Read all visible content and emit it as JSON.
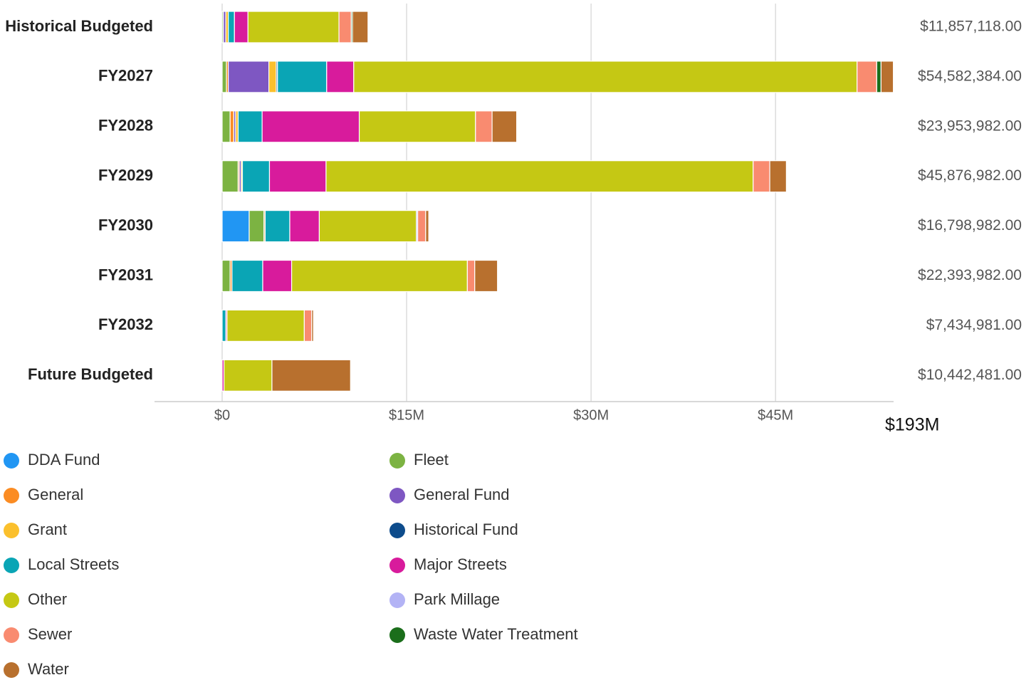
{
  "chart_data": {
    "type": "stacked-bar-horizontal",
    "categories": [
      "Historical Budgeted",
      "FY2027",
      "FY2028",
      "FY2029",
      "FY2030",
      "FY2031",
      "FY2032",
      "Future Budgeted"
    ],
    "series": [
      {
        "name": "DDA Fund",
        "color": "#2196f3",
        "values": [
          null,
          null,
          null,
          null,
          2.2,
          null,
          null,
          null
        ]
      },
      {
        "name": "Fleet",
        "color": "#7cb342",
        "values": [
          0.1,
          0.35,
          0.65,
          1.3,
          1.2,
          0.65,
          null,
          null
        ]
      },
      {
        "name": "General",
        "color": "#fb8c23",
        "values": [
          null,
          0.15,
          0.3,
          0.1,
          0.1,
          0.15,
          null,
          null
        ]
      },
      {
        "name": "General Fund",
        "color": "#7e57c2",
        "values": [
          0.2,
          3.3,
          0.15,
          0.15,
          null,
          null,
          null,
          null
        ]
      },
      {
        "name": "Grant",
        "color": "#fbc02d",
        "values": [
          0.2,
          0.6,
          0.2,
          0.1,
          null,
          null,
          null,
          null
        ]
      },
      {
        "name": "Historical Fund",
        "color": "#0d4c8c",
        "values": [
          null,
          0.1,
          null,
          null,
          null,
          null,
          null,
          null
        ]
      },
      {
        "name": "Local Streets",
        "color": "#0aa5b5",
        "values": [
          0.5,
          4.0,
          1.95,
          2.2,
          2.0,
          2.5,
          0.3,
          null
        ]
      },
      {
        "name": "Major Streets",
        "color": "#d81b9c",
        "values": [
          1.1,
          2.2,
          7.9,
          4.6,
          2.4,
          2.35,
          0.1,
          0.15
        ]
      },
      {
        "name": "Other",
        "color": "#c5c814",
        "values": [
          7.4,
          40.93,
          9.45,
          34.73,
          7.9,
          14.29,
          6.28,
          3.9
        ]
      },
      {
        "name": "Park Millage",
        "color": "#b3b3f5",
        "values": [
          null,
          null,
          null,
          null,
          0.1,
          null,
          null,
          null
        ]
      },
      {
        "name": "Sewer",
        "color": "#f98b70",
        "values": [
          1.0,
          1.6,
          1.35,
          1.35,
          0.65,
          0.6,
          0.6,
          null
        ]
      },
      {
        "name": "Waste Water Treatment",
        "color": "#1b6e1b",
        "values": [
          0.1,
          0.35,
          null,
          null,
          null,
          null,
          null,
          null
        ]
      },
      {
        "name": "Water",
        "color": "#b8702e",
        "values": [
          1.26,
          1.0,
          2.0,
          1.35,
          0.25,
          1.85,
          0.15,
          6.39
        ]
      }
    ],
    "totals": [
      {
        "value": 11.857118,
        "label": "$11,857,118.00"
      },
      {
        "value": 54.582384,
        "label": "$54,582,384.00"
      },
      {
        "value": 23.953982,
        "label": "$23,953,982.00"
      },
      {
        "value": 45.876982,
        "label": "$45,876,982.00"
      },
      {
        "value": 16.798982,
        "label": "$16,798,982.00"
      },
      {
        "value": 22.393982,
        "label": "$22,393,982.00"
      },
      {
        "value": 7.434981,
        "label": "$7,434,981.00"
      },
      {
        "value": 10.442481,
        "label": "$10,442,481.00"
      }
    ],
    "annotation": "$193M",
    "xlim": [
      -5.5,
      54.6
    ],
    "xticks": [
      {
        "value": 0,
        "label": "$0"
      },
      {
        "value": 15,
        "label": "$15M"
      },
      {
        "value": 30,
        "label": "$30M"
      },
      {
        "value": 45,
        "label": "$45M"
      }
    ],
    "grid": true,
    "legend": "bottom"
  }
}
